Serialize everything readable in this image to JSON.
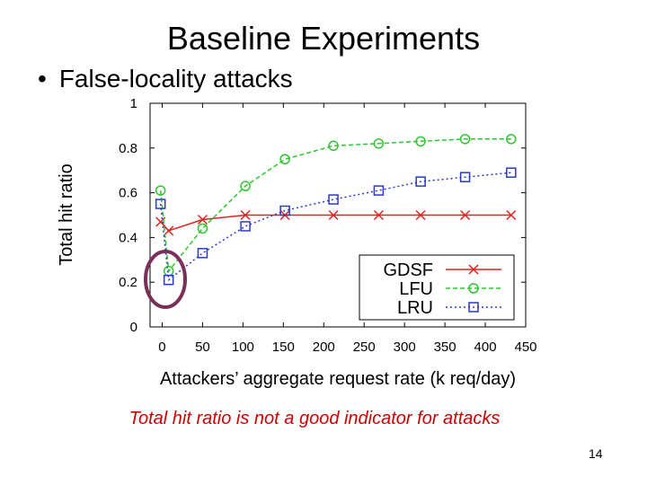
{
  "slide": {
    "title": "Baseline Experiments",
    "bullet": "False-locality attacks",
    "note": "Total hit ratio is not a good indicator for attacks",
    "page_number": "14"
  },
  "chart_data": {
    "type": "line",
    "title": "",
    "xlabel": "Attackers’ aggregate request rate (k req/day)",
    "ylabel": "Total hit ratio",
    "xlim": [
      -15,
      450
    ],
    "ylim": [
      0,
      1
    ],
    "xticks": [
      0,
      50,
      100,
      150,
      200,
      250,
      300,
      350,
      400,
      450
    ],
    "yticks": [
      0,
      0.2,
      0.4,
      0.6,
      0.8,
      1
    ],
    "ytick_labels": [
      "0",
      "0.2",
      "0.4",
      "0.6",
      "0.8",
      "1"
    ],
    "legend_position": "bottom-right",
    "series": [
      {
        "name": "GDSF",
        "color": "#e0231f",
        "dash": "solid",
        "marker": "x",
        "points": [
          [
            -2,
            0.47
          ],
          [
            8,
            0.43
          ],
          [
            50,
            0.48
          ],
          [
            103,
            0.5
          ],
          [
            152,
            0.5
          ],
          [
            212,
            0.5
          ],
          [
            268,
            0.5
          ],
          [
            320,
            0.5
          ],
          [
            375,
            0.5
          ],
          [
            432,
            0.5
          ]
        ]
      },
      {
        "name": "LFU",
        "color": "#2ec62e",
        "dash": "dashed",
        "marker": "circle",
        "points": [
          [
            -2,
            0.61
          ],
          [
            8,
            0.25
          ],
          [
            50,
            0.44
          ],
          [
            103,
            0.63
          ],
          [
            152,
            0.75
          ],
          [
            212,
            0.81
          ],
          [
            268,
            0.82
          ],
          [
            320,
            0.83
          ],
          [
            375,
            0.84
          ],
          [
            432,
            0.84
          ]
        ]
      },
      {
        "name": "LRU",
        "color": "#2a3bbd",
        "dash": "dotted",
        "marker": "square",
        "points": [
          [
            -2,
            0.55
          ],
          [
            8,
            0.21
          ],
          [
            50,
            0.33
          ],
          [
            103,
            0.45
          ],
          [
            152,
            0.52
          ],
          [
            212,
            0.57
          ],
          [
            268,
            0.61
          ],
          [
            320,
            0.65
          ],
          [
            375,
            0.67
          ],
          [
            432,
            0.69
          ]
        ]
      }
    ],
    "annotation_color": "#7b2f5c"
  }
}
